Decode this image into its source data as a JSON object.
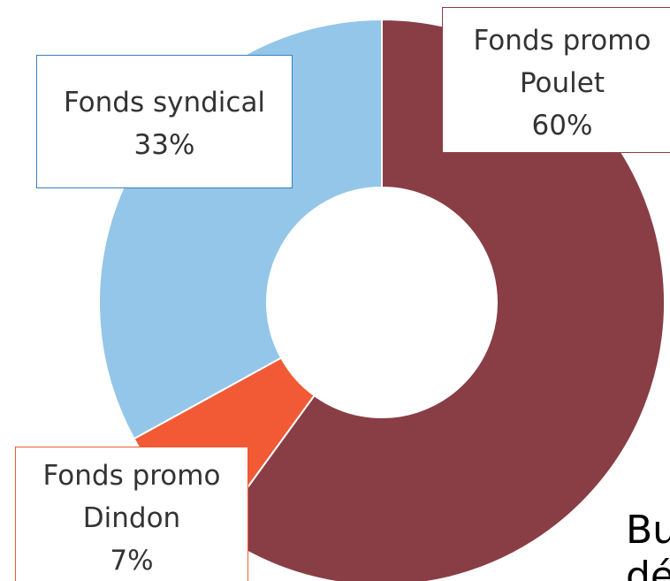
{
  "chart_data": {
    "type": "pie",
    "donut": true,
    "categories": [
      "Fonds promo Poulet",
      "Fonds promo Dindon",
      "Fonds syndical"
    ],
    "values": [
      60,
      7,
      33
    ],
    "value_labels": [
      "60%",
      "7%",
      "33%"
    ],
    "colors": [
      "#893e46",
      "#f15a35",
      "#93c6e8"
    ],
    "label_border_colors": [
      "#893e46",
      "#f15a35",
      "#3b7ebf"
    ],
    "annotations": [
      "Bu",
      "dé"
    ]
  }
}
